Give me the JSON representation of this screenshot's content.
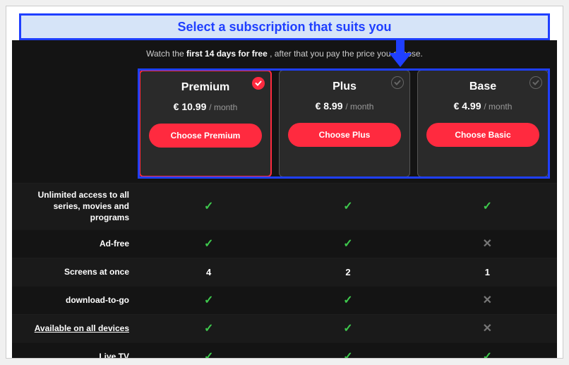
{
  "callout": {
    "text": "Select a subscription that suits you"
  },
  "colors": {
    "callout_bg": "#d6e4f8",
    "callout_border": "#1f3fff",
    "callout_text": "#1f3fff",
    "app_bg": "#141414",
    "card_bg": "#2a2a2a",
    "card_border": "#555555",
    "accent_red": "#ff2a3f",
    "tick_green": "#3ec94d",
    "cross_gray": "#777777",
    "row_alt_bg": "#1a1a1a"
  },
  "promo": {
    "prefix": "Watch the ",
    "bold": "first 14 days for free",
    "suffix": " , after that you pay the price you choose."
  },
  "plans": [
    {
      "name": "Premium",
      "price": "€ 10.99",
      "period": "/ month",
      "button": "Choose Premium",
      "selected": true
    },
    {
      "name": "Plus",
      "price": "€ 8.99",
      "period": "/ month",
      "button": "Choose Plus",
      "selected": false
    },
    {
      "name": "Base",
      "price": "€ 4.99",
      "period": "/ month",
      "button": "Choose Basic",
      "selected": false
    }
  ],
  "features": [
    {
      "label": "Unlimited access to all series, movies and programs",
      "underlined": false,
      "values": [
        "tick",
        "tick",
        "tick"
      ]
    },
    {
      "label": "Ad-free",
      "underlined": false,
      "values": [
        "tick",
        "tick",
        "cross"
      ]
    },
    {
      "label": "Screens at once",
      "underlined": false,
      "values": [
        "4",
        "2",
        "1"
      ]
    },
    {
      "label": "download-to-go",
      "underlined": false,
      "values": [
        "tick",
        "tick",
        "cross"
      ]
    },
    {
      "label": "Available on all devices",
      "underlined": true,
      "values": [
        "tick",
        "tick",
        "cross"
      ]
    },
    {
      "label": "Live TV",
      "underlined": false,
      "values": [
        "tick",
        "tick",
        "tick"
      ]
    }
  ]
}
